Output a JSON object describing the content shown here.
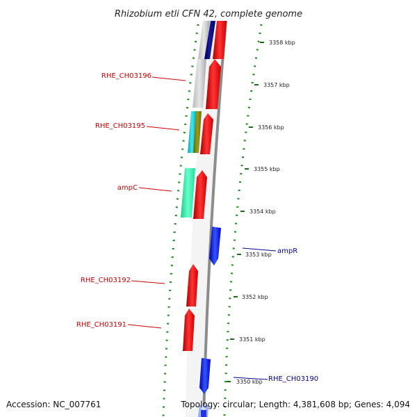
{
  "title": "Rhizobium etli CFN 42, complete genome",
  "accession": "Accession: NC_007761",
  "topology": "Topology: circular; Length: 4,381,608 bp; Genes: 4,094",
  "ticks": [
    "3358 kbp",
    "3357 kbp",
    "3356 kbp",
    "3355 kbp",
    "3354 kbp",
    "3353 kbp",
    "3352 kbp",
    "3351 kbp",
    "3350 kbp"
  ],
  "genes": {
    "RHE_CH03196": "RHE_CH03196",
    "RHE_CH03195": "RHE_CH03195",
    "ampC": "ampC",
    "ampR": "ampR",
    "RHE_CH03192": "RHE_CH03192",
    "RHE_CH03191": "RHE_CH03191",
    "RHE_CH03190": "RHE_CH03190"
  },
  "colors": {
    "forward_strand": "#ff0000",
    "reverse_strand": "#0000ff",
    "backbone": "#888888",
    "gc_dots": "#1a8a1a",
    "label_left": "#cc0000",
    "label_right": "#000099"
  }
}
